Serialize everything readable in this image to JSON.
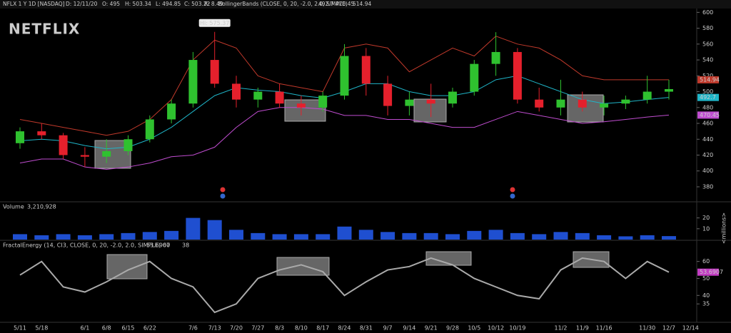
{
  "header": {
    "symbol": "NFLX 1 Y 1D [NASDAQ]",
    "date": "D: 12/11/20",
    "open": "O: 495",
    "high": "H: 503.34",
    "low": "L: 494.85",
    "close": "C: 503.22",
    "range": "R: 8.49",
    "study": "BollingerBands (CLOSE, 0, 20, -2.0, 2.0, SIMPLE)"
  },
  "chart_data": [
    {
      "type": "candlestick",
      "title": "NETFLIX",
      "annotation": "Hi: 575.37",
      "open": [
        435,
        450,
        445,
        420,
        418,
        425,
        440,
        465,
        485,
        540,
        510,
        490,
        500,
        485,
        480,
        495,
        545,
        510,
        482,
        490,
        485,
        500,
        535,
        550,
        490,
        480,
        490,
        480,
        485,
        490,
        500,
        null
      ],
      "high": [
        455,
        460,
        448,
        430,
        440,
        445,
        470,
        490,
        550,
        575.37,
        520,
        505,
        510,
        495,
        500,
        560,
        555,
        520,
        500,
        510,
        505,
        540,
        575,
        555,
        505,
        515,
        500,
        495,
        495,
        520,
        515,
        null
      ],
      "low": [
        428,
        440,
        415,
        405,
        410,
        420,
        436,
        460,
        480,
        505,
        480,
        480,
        480,
        470,
        475,
        490,
        495,
        470,
        470,
        468,
        480,
        495,
        520,
        485,
        475,
        470,
        475,
        470,
        478,
        485,
        490,
        null
      ],
      "close": [
        450,
        445,
        420,
        418,
        425,
        440,
        465,
        485,
        540,
        510,
        490,
        500,
        485,
        480,
        495,
        545,
        510,
        482,
        490,
        485,
        500,
        535,
        550,
        490,
        480,
        490,
        480,
        485,
        490,
        500,
        503.22,
        null
      ],
      "up_color": "#2fc12f",
      "down_color": "#e5202c",
      "series": [
        {
          "color": "#c0392b",
          "values": [
            465,
            460,
            455,
            450,
            445,
            450,
            465,
            490,
            540,
            565,
            555,
            520,
            510,
            505,
            500,
            555,
            560,
            555,
            525,
            540,
            555,
            545,
            570,
            560,
            555,
            540,
            520,
            515,
            515,
            515,
            514.94,
            null
          ]
        },
        {
          "color": "#1fb5c8",
          "values": [
            438,
            440,
            438,
            432,
            428,
            430,
            440,
            455,
            475,
            495,
            505,
            502,
            500,
            495,
            492,
            500,
            510,
            510,
            500,
            495,
            495,
            500,
            515,
            520,
            510,
            500,
            490,
            485,
            487,
            490,
            492.7,
            null
          ]
        },
        {
          "color": "#c04dd0",
          "values": [
            410,
            415,
            415,
            405,
            402,
            405,
            410,
            418,
            420,
            430,
            455,
            475,
            480,
            480,
            478,
            470,
            470,
            465,
            465,
            460,
            455,
            455,
            465,
            475,
            470,
            465,
            460,
            462,
            465,
            468,
            470.45,
            null
          ]
        }
      ],
      "ylim": [
        362,
        603
      ],
      "yticks": [
        380,
        400,
        420,
        440,
        460,
        480,
        500,
        520,
        540,
        560,
        580,
        600
      ]
    },
    {
      "type": "bar",
      "title": "Volume",
      "subtitle": "3,210,928",
      "y_label": "<millions>",
      "color": "#1f4fd0",
      "values": [
        5,
        4,
        5,
        4,
        5,
        6,
        7,
        8,
        20,
        18,
        9,
        6,
        5,
        5,
        5,
        12,
        9,
        7,
        6,
        6,
        5,
        8,
        9,
        6,
        5,
        7,
        6,
        4,
        3,
        4,
        3.210928,
        null
      ],
      "ylim": [
        0,
        25
      ],
      "yticks": [
        10,
        20
      ]
    },
    {
      "type": "line",
      "title": "FractalEnergy (14, CI3, CLOSE, 0, 20, -2.0, 2.0, SIMPLE)",
      "thresholds": [
        60,
        38
      ],
      "categories": [
        "5/11",
        "5/18",
        null,
        "6/1",
        "6/8",
        "6/15",
        "6/22",
        null,
        "7/6",
        "7/13",
        "7/20",
        "7/27",
        "8/3",
        "8/10",
        "8/17",
        "8/24",
        "8/31",
        "9/7",
        "9/14",
        "9/21",
        "9/28",
        "10/5",
        "10/12",
        "10/19",
        null,
        "11/2",
        "11/9",
        "11/16",
        null,
        "11/30",
        "12/7",
        "12/14"
      ],
      "series": [
        {
          "color": "#aaaaaa",
          "values": [
            52,
            60,
            45,
            42,
            48,
            55,
            60,
            50,
            45,
            30,
            35,
            50,
            55,
            58,
            54,
            40,
            48,
            55,
            57,
            62,
            58,
            50,
            45,
            40,
            38,
            55,
            62,
            60,
            50,
            60,
            53.6907,
            null
          ]
        }
      ],
      "ylim": [
        25,
        67
      ],
      "yticks": [
        35,
        40,
        50,
        60
      ]
    }
  ]
}
